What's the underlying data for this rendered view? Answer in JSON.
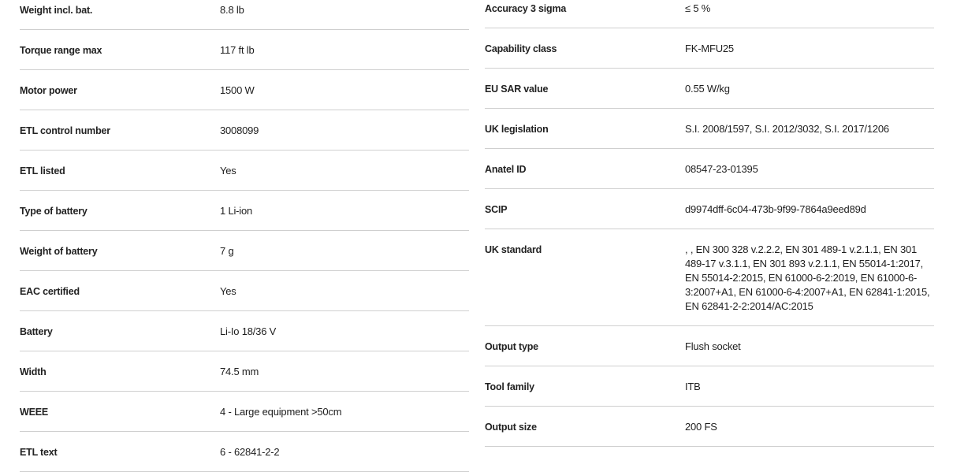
{
  "left_specs": [
    {
      "label": "Weight incl. bat.",
      "value": "8.8 lb"
    },
    {
      "label": "Torque range max",
      "value": "117 ft lb"
    },
    {
      "label": "Motor power",
      "value": "1500 W"
    },
    {
      "label": "ETL control number",
      "value": "3008099"
    },
    {
      "label": "ETL listed",
      "value": "Yes"
    },
    {
      "label": "Type of battery",
      "value": "1 Li-ion"
    },
    {
      "label": "Weight of battery",
      "value": "7 g"
    },
    {
      "label": "EAC certified",
      "value": "Yes"
    },
    {
      "label": "Battery",
      "value": "Li-Io 18/36 V"
    },
    {
      "label": "Width",
      "value": "74.5 mm"
    },
    {
      "label": "WEEE",
      "value": "4 - Large equipment >50cm"
    },
    {
      "label": "ETL text",
      "value": "6 - 62841-2-2"
    }
  ],
  "right_specs": [
    {
      "label": "Accuracy 3 sigma",
      "value": "≤ 5 %"
    },
    {
      "label": "Capability class",
      "value": "FK-MFU25"
    },
    {
      "label": "EU SAR value",
      "value": "0.55 W/kg"
    },
    {
      "label": "UK legislation",
      "value": "S.I. 2008/1597, S.I. 2012/3032, S.I. 2017/1206"
    },
    {
      "label": "Anatel ID",
      "value": "08547-23-01395"
    },
    {
      "label": "SCIP",
      "value": "d9974dff-6c04-473b-9f99-7864a9eed89d"
    },
    {
      "label": "UK standard",
      "value": ", , EN 300 328 v.2.2.2, EN 301 489-1 v.2.1.1, EN 301 489-17 v.3.1.1, EN 301 893 v.2.1.1, EN 55014-1:2017, EN 55014-2:2015, EN 61000-6-2:2019, EN 61000-6-3:2007+A1, EN 61000-6-4:2007+A1, EN 62841-1:2015, EN 62841-2-2:2014/AC:2015"
    },
    {
      "label": "Output type",
      "value": "Flush socket"
    },
    {
      "label": "Tool family",
      "value": "ITB"
    },
    {
      "label": "Output size",
      "value": "200 FS"
    }
  ]
}
